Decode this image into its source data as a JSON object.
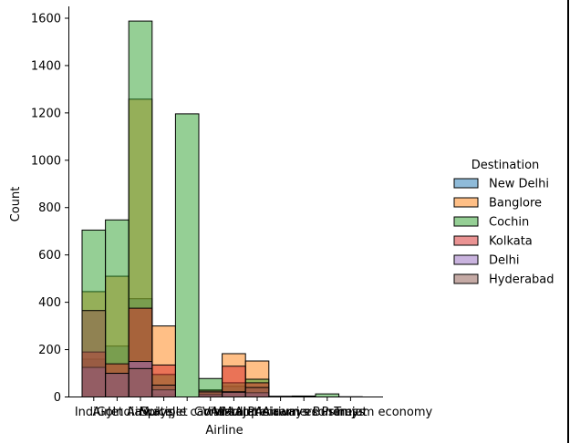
{
  "chart_data": {
    "type": "bar",
    "stacked": false,
    "overlapping": true,
    "xlabel": "Airline",
    "ylabel": "Count",
    "ylim": [
      0,
      1650
    ],
    "yticks": [
      0,
      200,
      400,
      600,
      800,
      1000,
      1200,
      1400,
      1600
    ],
    "grid": false,
    "legend": {
      "title": "Destination",
      "placement": "right"
    },
    "categories": [
      "IndiGo",
      "Air India",
      "Jet Airways",
      "SpiceJet",
      "Multiple carriers",
      "GoAir",
      "Vistara",
      "Air Asia",
      "Vistara Premium economy",
      "Jet Airways Business",
      "Multiple carriers Premium economy",
      "Trujet"
    ],
    "colors": {
      "New Delhi": "#1f77b4",
      "Banglore": "#ff7f0e",
      "Cochin": "#2ca02c",
      "Kolkata": "#d62728",
      "Delhi": "#9467bd",
      "Hyderabad": "#8c564b"
    },
    "series": [
      {
        "name": "New Delhi",
        "values": [
          160,
          215,
          415,
          10,
          0,
          20,
          45,
          18,
          2,
          1,
          0,
          0
        ]
      },
      {
        "name": "Banglore",
        "values": [
          445,
          510,
          1258,
          300,
          0,
          30,
          183,
          152,
          3,
          2,
          0,
          0
        ]
      },
      {
        "name": "Cochin",
        "values": [
          705,
          748,
          1588,
          95,
          1196,
          78,
          60,
          75,
          2,
          4,
          13,
          1
        ]
      },
      {
        "name": "Kolkata",
        "values": [
          190,
          140,
          375,
          135,
          0,
          20,
          130,
          60,
          1,
          0,
          0,
          0
        ]
      },
      {
        "name": "Delhi",
        "values": [
          125,
          100,
          150,
          30,
          0,
          10,
          22,
          18,
          0,
          0,
          0,
          0
        ]
      },
      {
        "name": "Hyderabad",
        "values": [
          365,
          100,
          120,
          50,
          0,
          25,
          20,
          40,
          0,
          0,
          0,
          0
        ]
      }
    ]
  }
}
